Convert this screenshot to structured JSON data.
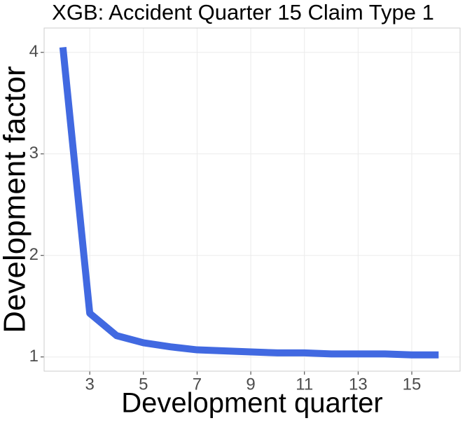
{
  "chart_data": {
    "type": "line",
    "title": "XGB: Accident Quarter 15 Claim Type 1",
    "x_label": "Development quarter",
    "y_label": "Development factor",
    "x": [
      2,
      3,
      4,
      5,
      6,
      7,
      8,
      9,
      10,
      11,
      12,
      13,
      14,
      15,
      16
    ],
    "series": [
      {
        "name": "Development factor",
        "color": "#4169e1",
        "values": [
          4.05,
          1.43,
          1.21,
          1.14,
          1.1,
          1.07,
          1.06,
          1.05,
          1.04,
          1.04,
          1.03,
          1.03,
          1.03,
          1.02,
          1.02
        ]
      }
    ],
    "xlim": [
      1.3,
      16.8
    ],
    "xticks": [
      3,
      5,
      7,
      9,
      11,
      13,
      15
    ],
    "ylim": [
      0.86,
      4.24
    ],
    "yticks": [
      1,
      2,
      3,
      4
    ],
    "grid": true
  }
}
